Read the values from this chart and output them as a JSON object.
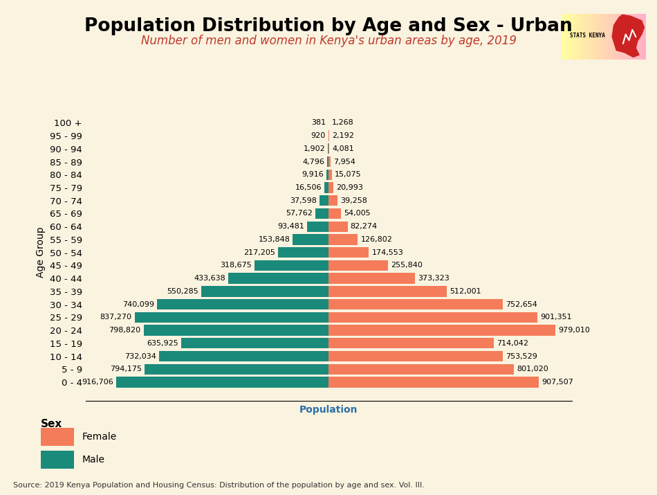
{
  "title": "Population Distribution by Age and Sex - Urban",
  "subtitle": "Number of men and women in Kenya's urban areas by age, 2019",
  "xlabel": "Population",
  "ylabel": "Age Group",
  "source": "Source: 2019 Kenya Population and Housing Census: Distribution of the population by age and sex. Vol. III.",
  "background_color": "#faf3e0",
  "age_groups": [
    "0 - 4",
    "5 - 9",
    "10 - 14",
    "15 - 19",
    "20 - 24",
    "25 - 29",
    "30 - 34",
    "35 - 39",
    "40 - 44",
    "45 - 49",
    "50 - 54",
    "55 - 59",
    "60 - 64",
    "65 - 69",
    "70 - 74",
    "75 - 79",
    "80 - 84",
    "85 - 89",
    "90 - 94",
    "95 - 99",
    "100 +"
  ],
  "male": [
    916706,
    794175,
    732034,
    635925,
    798820,
    837270,
    740099,
    550285,
    433638,
    318675,
    217205,
    153848,
    93481,
    57762,
    37598,
    16506,
    9916,
    4796,
    1902,
    920,
    381
  ],
  "female": [
    907507,
    801020,
    753529,
    714042,
    979010,
    901351,
    752654,
    512001,
    373323,
    255840,
    174553,
    126802,
    82274,
    54005,
    39258,
    20993,
    15075,
    7954,
    4081,
    2192,
    1268
  ],
  "male_color": "#1a8a7a",
  "female_color": "#f47c5a",
  "grid_color": "#cccccc",
  "title_fontsize": 19,
  "subtitle_fontsize": 12,
  "label_fontsize": 10,
  "tick_fontsize": 9.5,
  "annotation_fontsize": 8,
  "xlim": 1050000
}
